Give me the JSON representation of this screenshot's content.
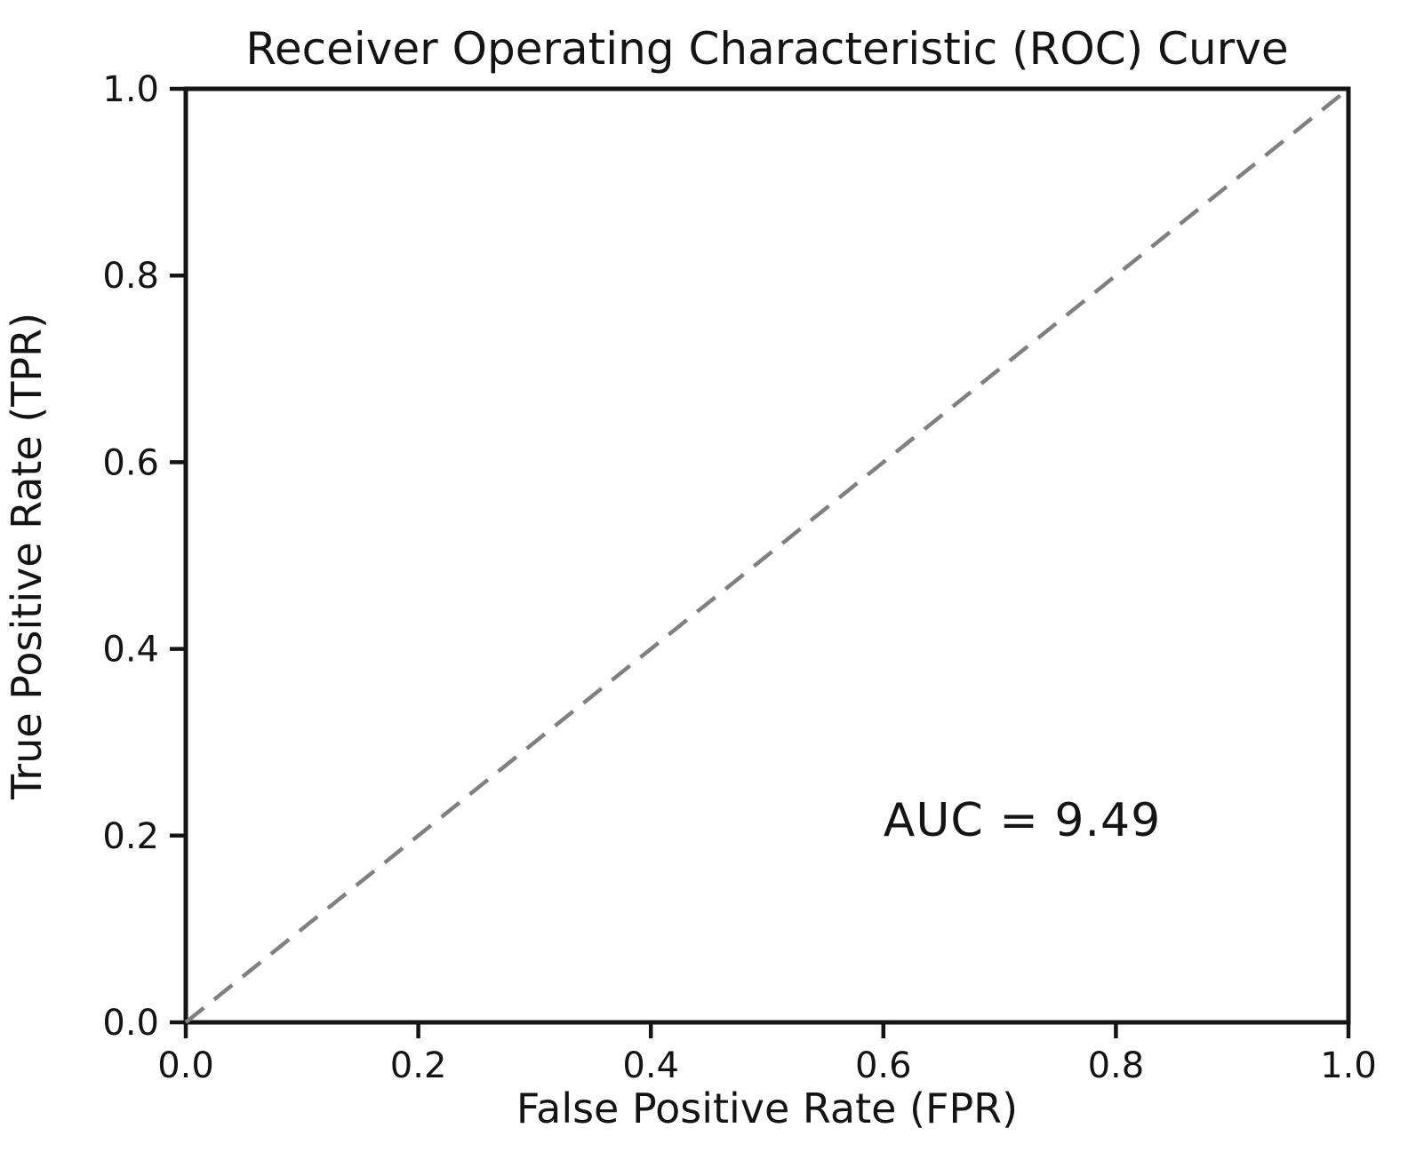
{
  "figure": {
    "background": "#ffffff",
    "axis_color": "#141414",
    "text_color": "#141414"
  },
  "chart_data": {
    "type": "line",
    "title": "Receiver Operating Characteristic (ROC) Curve",
    "xlabel": "False Positive Rate (FPR)",
    "ylabel": "True Positive Rate (TPR)",
    "xlim": [
      0.0,
      1.0
    ],
    "ylim": [
      0.0,
      1.0
    ],
    "x_ticks": [
      0.0,
      0.2,
      0.4,
      0.6,
      0.8,
      1.0
    ],
    "x_tick_labels": [
      "0.0",
      "0.2",
      "0.4",
      "0.6",
      "0.8",
      "1.0"
    ],
    "y_ticks": [
      0.0,
      0.2,
      0.4,
      0.6,
      0.8,
      1.0
    ],
    "y_tick_labels": [
      "0.0",
      "0.2",
      "0.4",
      "0.6",
      "0.8",
      "1.0"
    ],
    "grid": false,
    "legend": "none",
    "series": [
      {
        "name": "chance-diagonal",
        "label": "",
        "style": "dashed",
        "color": "#808080",
        "x": [
          0.0,
          1.0
        ],
        "y": [
          0.0,
          1.0
        ]
      }
    ],
    "annotations": [
      {
        "name": "auc-annotation",
        "text": "AUC = 9.49",
        "x": 0.6,
        "y": 0.2,
        "color": "#009e4a",
        "ha": "left",
        "va": "baseline"
      }
    ]
  }
}
